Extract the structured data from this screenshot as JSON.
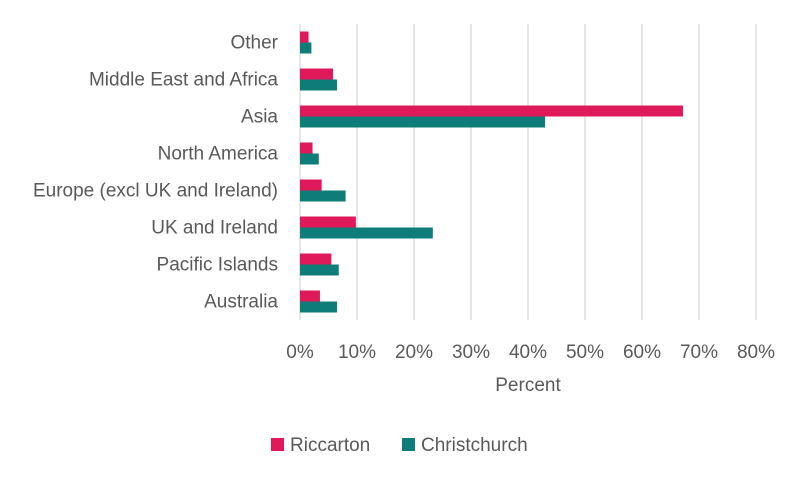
{
  "chart_data": {
    "type": "bar",
    "orientation": "horizontal",
    "title": "",
    "xlabel": "Percent",
    "ylabel": "",
    "xlim": [
      0,
      80
    ],
    "x_ticks": [
      0,
      10,
      20,
      30,
      40,
      50,
      60,
      70,
      80
    ],
    "x_tick_labels": [
      "0%",
      "10%",
      "20%",
      "30%",
      "40%",
      "50%",
      "60%",
      "70%",
      "80%"
    ],
    "grid": true,
    "legend_position": "bottom",
    "categories": [
      "Other",
      "Middle East and Africa",
      "Asia",
      "North America",
      "Europe (excl UK and Ireland)",
      "UK and Ireland",
      "Pacific Islands",
      "Australia"
    ],
    "series": [
      {
        "name": "Riccarton",
        "color": "#e0195a",
        "values": [
          1.5,
          5.8,
          67.2,
          2.2,
          3.8,
          9.8,
          5.5,
          3.5
        ]
      },
      {
        "name": "Christchurch",
        "color": "#0e7d7a",
        "values": [
          2.0,
          6.5,
          43.0,
          3.3,
          8.0,
          23.3,
          6.8,
          6.5
        ]
      }
    ]
  }
}
